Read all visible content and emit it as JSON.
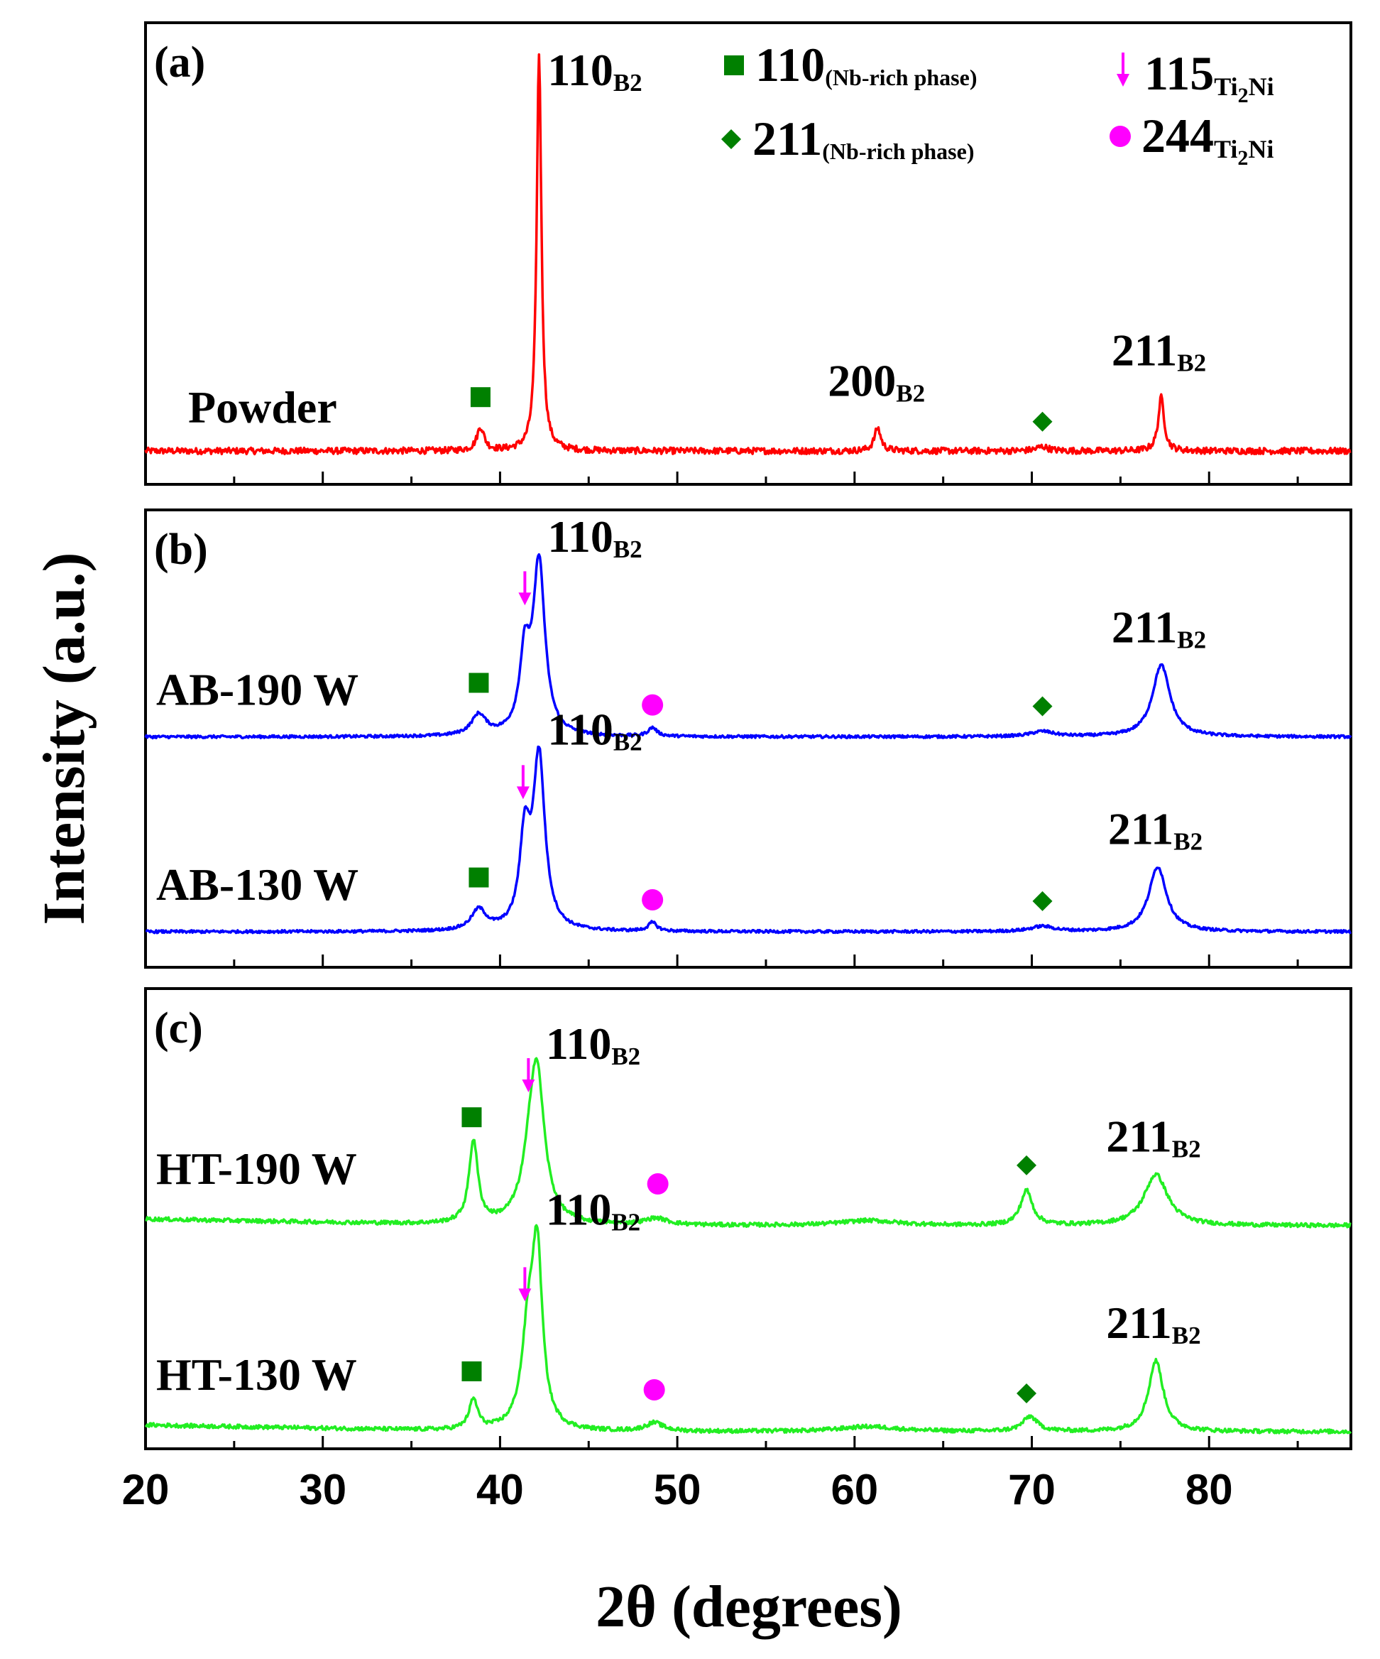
{
  "chart_data": {
    "type": "line",
    "ylabel": "Intensity (a.u.)",
    "xlabel": "2θ (degrees)",
    "xlim": [
      20,
      88
    ],
    "xticks": [
      "20",
      "30",
      "40",
      "50",
      "60",
      "70",
      "80"
    ],
    "legend": {
      "square": {
        "main": "110",
        "sub": "(Nb-rich phase)"
      },
      "diamond": {
        "main": "211",
        "sub": "(Nb-rich phase)"
      },
      "arrow": {
        "main": "115",
        "sub": "Ti",
        "sub2": "2",
        "sub3": "Ni"
      },
      "circle": {
        "main": "244",
        "sub": "Ti",
        "sub2": "2",
        "sub3": "Ni"
      }
    },
    "panels": [
      {
        "tag": "(a)",
        "series": [
          {
            "name": "Powder",
            "color": "#ff0000",
            "base": 0,
            "scale": 1,
            "peaks": [
              [
                38.9,
                0.058,
                0.25
              ],
              [
                42.2,
                1.0,
                0.16
              ],
              [
                61.3,
                0.058,
                0.22
              ],
              [
                70.6,
                0.011,
                0.4
              ],
              [
                77.3,
                0.135,
                0.2
              ]
            ],
            "labels": [
              {
                "main": "110",
                "sub": "B2",
                "x": 42.2
              },
              {
                "main": "200",
                "sub": "B2",
                "x": 61.3
              },
              {
                "main": "211",
                "sub": "B2",
                "x": 77.3
              }
            ],
            "markers": [
              {
                "type": "square",
                "x": 38.9
              },
              {
                "type": "diamond",
                "x": 70.6
              }
            ]
          }
        ]
      },
      {
        "tag": "(b)",
        "series": [
          {
            "name": "AB-190 W",
            "color": "#0000ff",
            "base": 0.49,
            "scale": 0.43,
            "peaks": [
              [
                38.8,
                0.12,
                0.5
              ],
              [
                41.4,
                0.44,
                0.35
              ],
              [
                42.2,
                1.0,
                0.4
              ],
              [
                48.6,
                0.05,
                0.3
              ],
              [
                70.6,
                0.03,
                0.8
              ],
              [
                77.3,
                0.42,
                0.6
              ]
            ],
            "labels": [
              {
                "main": "110",
                "sub": "B2",
                "x": 42.2
              },
              {
                "main": "211",
                "sub": "B2",
                "x": 77.3
              }
            ],
            "markers": [
              {
                "type": "square",
                "x": 38.8
              },
              {
                "type": "arrow",
                "x": 41.4
              },
              {
                "type": "circle",
                "x": 48.6
              },
              {
                "type": "diamond",
                "x": 70.6
              }
            ]
          },
          {
            "name": "AB-130 W",
            "color": "#0000ff",
            "base": 0.0,
            "scale": 0.43,
            "peaks": [
              [
                38.8,
                0.12,
                0.5
              ],
              [
                41.4,
                0.52,
                0.35
              ],
              [
                42.2,
                1.0,
                0.4
              ],
              [
                48.6,
                0.05,
                0.3
              ],
              [
                70.6,
                0.03,
                0.8
              ],
              [
                77.1,
                0.38,
                0.6
              ]
            ],
            "labels": [
              {
                "main": "110",
                "sub": "B2",
                "x": 42.2
              },
              {
                "main": "211",
                "sub": "B2",
                "x": 77.1
              }
            ],
            "markers": [
              {
                "type": "square",
                "x": 38.8
              },
              {
                "type": "arrow",
                "x": 41.3
              },
              {
                "type": "circle",
                "x": 48.6
              },
              {
                "type": "diamond",
                "x": 70.6
              }
            ]
          }
        ]
      },
      {
        "tag": "(c)",
        "series": [
          {
            "name": "HT-190 W",
            "color": "#22ee22",
            "base": 0.5,
            "scale": 0.4,
            "peaks": [
              [
                38.5,
                0.5,
                0.3
              ],
              [
                41.8,
                0.35,
                0.6
              ],
              [
                42.1,
                0.72,
                0.5
              ],
              [
                48.8,
                0.04,
                0.8
              ],
              [
                60.8,
                0.03,
                2.0
              ],
              [
                69.7,
                0.21,
                0.4
              ],
              [
                77.0,
                0.31,
                0.8
              ]
            ],
            "labels": [
              {
                "main": "110",
                "sub": "B2",
                "x": 42.1
              },
              {
                "main": "211",
                "sub": "B2",
                "x": 77.0
              }
            ],
            "markers": [
              {
                "type": "square",
                "x": 38.4
              },
              {
                "type": "arrow",
                "x": 41.6
              },
              {
                "type": "circle",
                "x": 48.9
              },
              {
                "type": "diamond",
                "x": 69.7
              }
            ]
          },
          {
            "name": "HT-130 W",
            "color": "#22ee22",
            "base": 0.0,
            "scale": 0.4,
            "peaks": [
              [
                38.5,
                0.18,
                0.3
              ],
              [
                41.6,
                0.55,
                0.45
              ],
              [
                42.1,
                1.0,
                0.35
              ],
              [
                48.7,
                0.05,
                0.6
              ],
              [
                60.8,
                0.03,
                2.0
              ],
              [
                69.9,
                0.09,
                0.5
              ],
              [
                77.0,
                0.43,
                0.5
              ]
            ],
            "labels": [
              {
                "main": "110",
                "sub": "B2",
                "x": 42.1
              },
              {
                "main": "211",
                "sub": "B2",
                "x": 77.0
              }
            ],
            "markers": [
              {
                "type": "square",
                "x": 38.4
              },
              {
                "type": "arrow",
                "x": 41.4
              },
              {
                "type": "circle",
                "x": 48.7
              },
              {
                "type": "diamond",
                "x": 69.7
              }
            ]
          }
        ]
      }
    ]
  }
}
